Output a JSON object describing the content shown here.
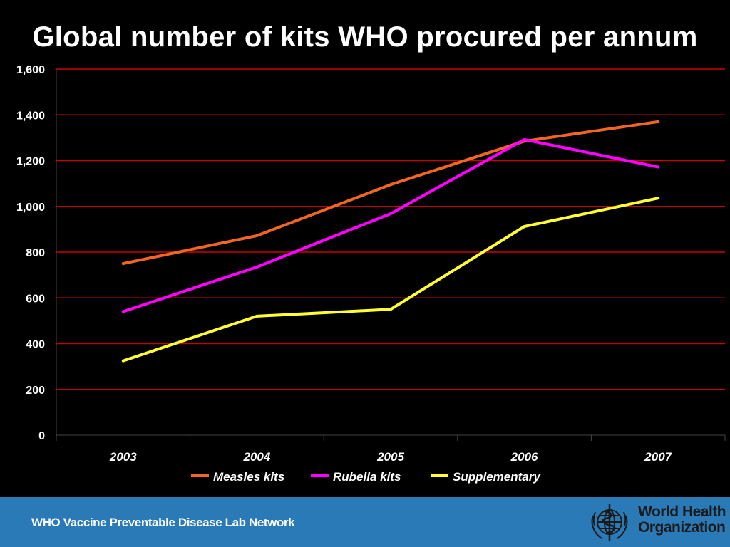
{
  "page": {
    "title": "Global number of kits WHO procured per annum",
    "footer_text": "WHO Vaccine Preventable Disease Lab Network",
    "org_line1": "World Health",
    "org_line2": "Organization",
    "logo_icon": "who-emblem-icon",
    "colors": {
      "background": "#000000",
      "gridline": "#cc0000",
      "footer": "#2a7ab8",
      "text": "#ffffff"
    }
  },
  "chart_data": {
    "type": "line",
    "title": "Global number of kits WHO procured per annum",
    "xlabel": "",
    "ylabel": "",
    "categories": [
      "2003",
      "2004",
      "2005",
      "2006",
      "2007"
    ],
    "ylim": [
      0,
      1600
    ],
    "yticks": [
      0,
      200,
      400,
      600,
      800,
      1000,
      1200,
      1400,
      1600
    ],
    "ytick_labels": [
      "0",
      "200",
      "400",
      "600",
      "800",
      "1,000",
      "1,200",
      "1,400",
      "1,600"
    ],
    "grid": true,
    "legend_position": "bottom",
    "series": [
      {
        "name": "Measles kits",
        "color": "#f26522",
        "values": [
          750,
          872,
          1095,
          1285,
          1370
        ]
      },
      {
        "name": "Rubella kits",
        "color": "#ff00ff",
        "values": [
          540,
          735,
          968,
          1292,
          1172
        ]
      },
      {
        "name": "Supplementary",
        "color": "#ffff33",
        "values": [
          325,
          520,
          550,
          912,
          1036
        ]
      }
    ]
  }
}
